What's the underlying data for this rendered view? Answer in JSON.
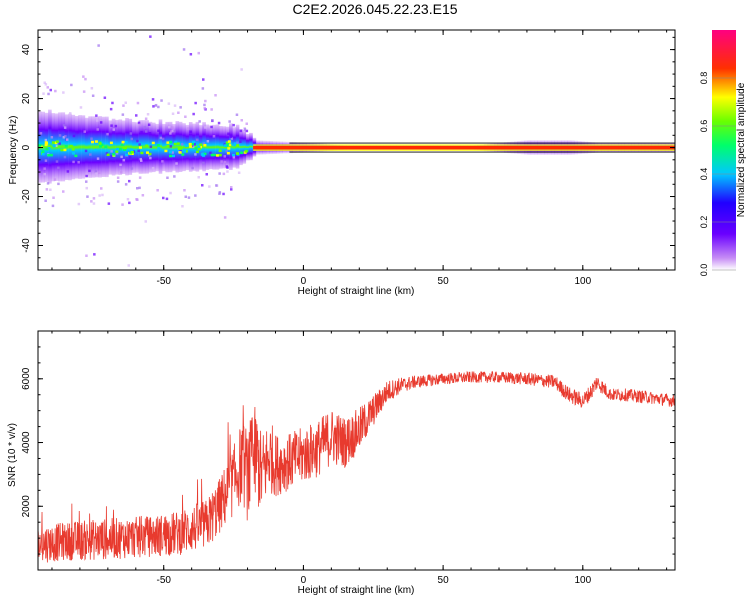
{
  "title": "C2E2.2026.045.22.23.E15",
  "colors": {
    "snr_line": "#e83a2e",
    "background": "#ffffff",
    "axis": "#000000"
  },
  "chart_data": [
    {
      "type": "heatmap",
      "xlabel": "Height of straight line (km)",
      "ylabel": "Frequency (Hz)",
      "xlim": [
        -95,
        133
      ],
      "ylim": [
        -50,
        48
      ],
      "xticks": [
        -50,
        0,
        50,
        100
      ],
      "yticks": [
        -40,
        -20,
        0,
        20,
        40
      ],
      "colorbar": {
        "label": "Normalized spectral amplitude",
        "range": [
          0,
          1
        ],
        "ticks": [
          "0.0",
          "0.2",
          "0.4",
          "0.6",
          "0.8"
        ],
        "colormap": "rainbow (white-purple-blue-cyan-green-yellow-red-magenta)"
      },
      "line_at_frequency_hz": 0,
      "spread_profile": [
        {
          "x": -95,
          "half_width_hz": 14
        },
        {
          "x": -80,
          "half_width_hz": 12
        },
        {
          "x": -60,
          "half_width_hz": 10
        },
        {
          "x": -40,
          "half_width_hz": 9
        },
        {
          "x": -25,
          "half_width_hz": 8
        },
        {
          "x": -18,
          "half_width_hz": 3
        },
        {
          "x": 0,
          "half_width_hz": 2
        },
        {
          "x": 15,
          "half_width_hz": 1
        },
        {
          "x": 60,
          "half_width_hz": 1
        },
        {
          "x": 70,
          "half_width_hz": 2
        },
        {
          "x": 80,
          "half_width_hz": 3
        },
        {
          "x": 95,
          "half_width_hz": 3
        },
        {
          "x": 105,
          "half_width_hz": 2
        },
        {
          "x": 133,
          "half_width_hz": 2
        }
      ]
    },
    {
      "type": "line",
      "xlabel": "Height of straight line (km)",
      "ylabel": "SNR (10 * v/v)",
      "xlim": [
        -95,
        133
      ],
      "ylim": [
        0,
        7500
      ],
      "xticks": [
        -50,
        0,
        50,
        100
      ],
      "yticks": [
        2000,
        4000,
        6000
      ],
      "series": [
        {
          "name": "SNR",
          "x": [
            -95,
            -85,
            -75,
            -65,
            -55,
            -45,
            -40,
            -35,
            -30,
            -25,
            -22,
            -20,
            -17,
            -15,
            -12,
            -10,
            -5,
            0,
            5,
            10,
            15,
            20,
            25,
            30,
            35,
            40,
            50,
            60,
            70,
            80,
            90,
            95,
            100,
            103,
            105,
            110,
            115,
            120,
            125,
            133
          ],
          "y": [
            800,
            900,
            950,
            1000,
            1050,
            1150,
            1300,
            1400,
            2000,
            2800,
            3400,
            3000,
            3600,
            3000,
            3600,
            3300,
            3400,
            3600,
            3800,
            4200,
            4000,
            4400,
            5000,
            5600,
            5800,
            5900,
            6000,
            6050,
            6050,
            6000,
            5900,
            5500,
            5300,
            5600,
            5900,
            5500,
            5500,
            5450,
            5400,
            5300
          ],
          "noise": [
            600,
            600,
            650,
            650,
            650,
            700,
            750,
            800,
            900,
            1100,
            1300,
            1500,
            1600,
            1300,
            1200,
            1000,
            900,
            900,
            900,
            900,
            800,
            700,
            500,
            350,
            250,
            200,
            180,
            180,
            180,
            200,
            220,
            250,
            250,
            250,
            250,
            200,
            200,
            200,
            200,
            200
          ]
        }
      ]
    }
  ]
}
